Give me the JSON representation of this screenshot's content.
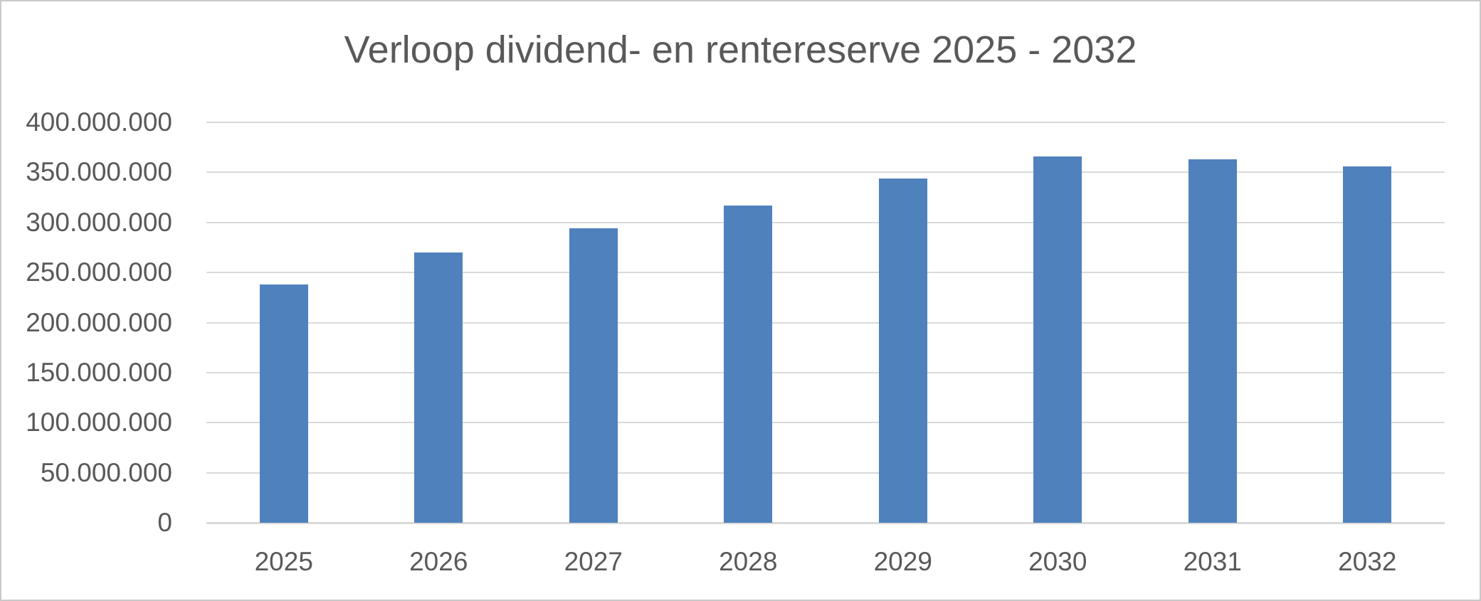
{
  "chart_data": {
    "type": "bar",
    "title": "Verloop dividend- en rentereserve 2025 - 2032",
    "categories": [
      "2025",
      "2026",
      "2027",
      "2028",
      "2029",
      "2030",
      "2031",
      "2032"
    ],
    "values": [
      238000000,
      270000000,
      294000000,
      317000000,
      344000000,
      366000000,
      363000000,
      356000000
    ],
    "xlabel": "",
    "ylabel": "",
    "ylim": [
      0,
      400000000
    ],
    "y_tick_step": 50000000,
    "y_tick_labels_top_to_bottom": [
      "400.000.000",
      "350.000.000",
      "300.000.000",
      "250.000.000",
      "200.000.000",
      "150.000.000",
      "100.000.000",
      "50.000.000",
      "0"
    ],
    "grid": "horizontal",
    "legend": "none",
    "colors": {
      "bar": "#4f81bd",
      "text": "#595959",
      "gridline": "#d9d9d9",
      "chart_border": "#c9c9c9",
      "background": "#ffffff"
    }
  }
}
